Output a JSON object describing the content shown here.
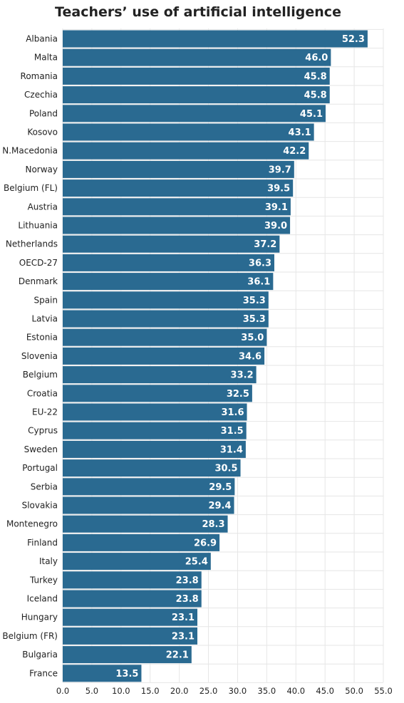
{
  "chart_data": {
    "type": "bar",
    "orientation": "horizontal",
    "title": "Teachers’ use of artificial intelligence",
    "categories": [
      "Albania",
      "Malta",
      "Romania",
      "Czechia",
      "Poland",
      "Kosovo",
      "N.Macedonia",
      "Norway",
      "Belgium (FL)",
      "Austria",
      "Lithuania",
      "Netherlands",
      "OECD-27",
      "Denmark",
      "Spain",
      "Latvia",
      "Estonia",
      "Slovenia",
      "Belgium",
      "Croatia",
      "EU-22",
      "Cyprus",
      "Sweden",
      "Portugal",
      "Serbia",
      "Slovakia",
      "Montenegro",
      "Finland",
      "Italy",
      "Turkey",
      "Iceland",
      "Hungary",
      "Belgium (FR)",
      "Bulgaria",
      "France"
    ],
    "values": [
      52.3,
      46.0,
      45.8,
      45.8,
      45.1,
      43.1,
      42.2,
      39.7,
      39.5,
      39.1,
      39.0,
      37.2,
      36.3,
      36.1,
      35.3,
      35.3,
      35.0,
      34.6,
      33.2,
      32.5,
      31.6,
      31.5,
      31.4,
      30.5,
      29.5,
      29.4,
      28.3,
      26.9,
      25.4,
      23.8,
      23.8,
      23.1,
      23.1,
      22.1,
      13.5
    ],
    "value_labels": [
      "52.3",
      "46.0",
      "45.8",
      "45.8",
      "45.1",
      "43.1",
      "42.2",
      "39.7",
      "39.5",
      "39.1",
      "39.0",
      "37.2",
      "36.3",
      "36.1",
      "35.3",
      "35.3",
      "35.0",
      "34.6",
      "33.2",
      "32.5",
      "31.6",
      "31.5",
      "31.4",
      "30.5",
      "29.5",
      "29.4",
      "28.3",
      "26.9",
      "25.4",
      "23.8",
      "23.8",
      "23.1",
      "23.1",
      "22.1",
      "13.5"
    ],
    "xlim": [
      0,
      55
    ],
    "ticks": [
      "0.0",
      "5.0",
      "10.0",
      "15.0",
      "20.0",
      "25.0",
      "30.0",
      "35.0",
      "40.0",
      "45.0",
      "50.0",
      "55.0"
    ],
    "grid": true,
    "colors": {
      "bar": "#2a6a91",
      "bar_label": "#ffffff",
      "text": "#222222",
      "grid": "#e6e6e6"
    }
  }
}
